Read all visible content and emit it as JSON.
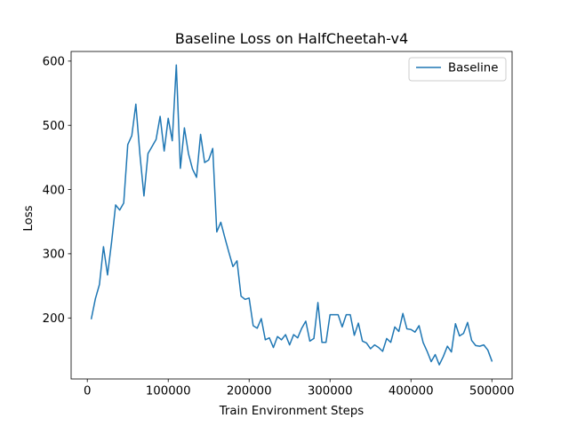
{
  "chart_data": {
    "type": "line",
    "title": "Baseline Loss on HalfCheetah-v4",
    "xlabel": "Train Environment Steps",
    "ylabel": "Loss",
    "xlim": [
      -20000,
      525000
    ],
    "ylim": [
      105,
      615
    ],
    "x_ticks": [
      0,
      100000,
      200000,
      300000,
      400000,
      500000
    ],
    "y_ticks": [
      200,
      300,
      400,
      500,
      600
    ],
    "grid": false,
    "legend_position": "top-right",
    "series": [
      {
        "name": "Baseline",
        "color": "#1f77b4",
        "x": [
          5000,
          10000,
          15000,
          20000,
          25000,
          30000,
          35000,
          40000,
          45000,
          50000,
          55000,
          60000,
          65000,
          70000,
          75000,
          80000,
          85000,
          90000,
          95000,
          100000,
          105000,
          110000,
          115000,
          120000,
          125000,
          130000,
          135000,
          140000,
          145000,
          150000,
          155000,
          160000,
          165000,
          170000,
          175000,
          180000,
          185000,
          190000,
          195000,
          200000,
          205000,
          210000,
          215000,
          220000,
          225000,
          230000,
          235000,
          240000,
          245000,
          250000,
          255000,
          260000,
          265000,
          270000,
          275000,
          280000,
          285000,
          290000,
          295000,
          300000,
          305000,
          310000,
          315000,
          320000,
          325000,
          330000,
          335000,
          340000,
          345000,
          350000,
          355000,
          360000,
          365000,
          370000,
          375000,
          380000,
          385000,
          390000,
          395000,
          400000,
          405000,
          410000,
          415000,
          420000,
          425000,
          430000,
          435000,
          440000,
          445000,
          450000,
          455000,
          460000,
          465000,
          470000,
          475000,
          480000,
          485000,
          490000,
          495000,
          500000
        ],
        "values": [
          199,
          230,
          252,
          311,
          267,
          318,
          376,
          368,
          379,
          470,
          484,
          533,
          455,
          390,
          456,
          467,
          478,
          514,
          460,
          511,
          476,
          594,
          433,
          496,
          456,
          432,
          419,
          486,
          442,
          446,
          464,
          334,
          349,
          325,
          302,
          280,
          289,
          234,
          229,
          231,
          188,
          184,
          199,
          166,
          169,
          154,
          171,
          166,
          174,
          158,
          174,
          169,
          184,
          195,
          164,
          168,
          224,
          162,
          162,
          205,
          205,
          205,
          186,
          205,
          205,
          173,
          192,
          164,
          161,
          152,
          158,
          154,
          148,
          168,
          162,
          186,
          179,
          207,
          183,
          182,
          178,
          188,
          162,
          148,
          132,
          143,
          127,
          140,
          156,
          147,
          191,
          172,
          176,
          193,
          165,
          157,
          156,
          158,
          150,
          133
        ]
      }
    ]
  }
}
